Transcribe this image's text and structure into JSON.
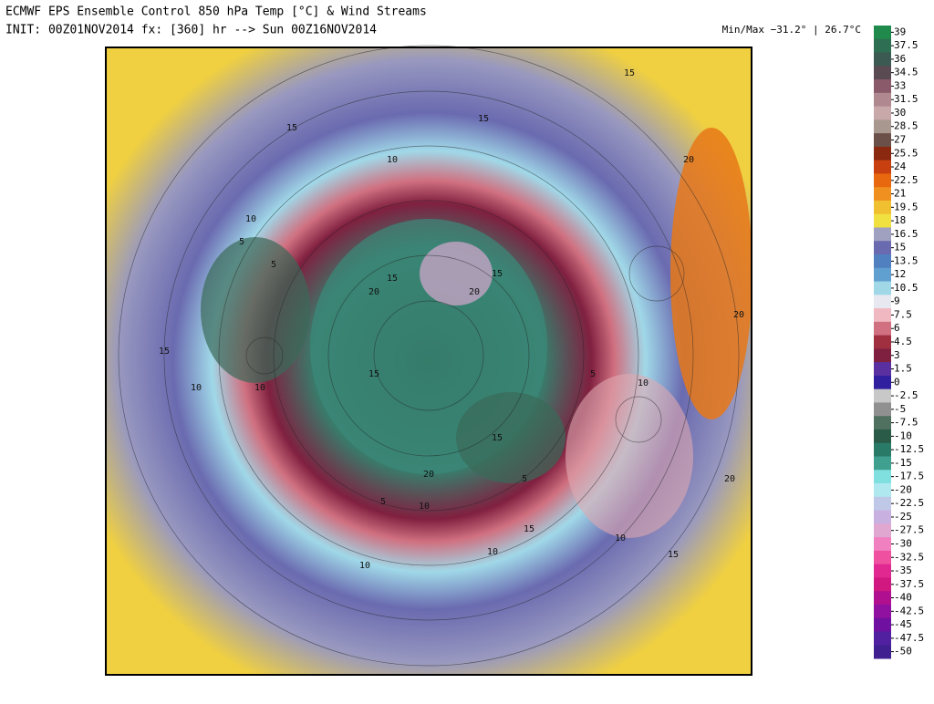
{
  "header": {
    "title": "ECMWF EPS Ensemble Control 850 hPa Temp [°C] & Wind Streams",
    "init": "INIT: 00Z01NOV2014 fx: [360] hr --> Sun 00Z16NOV2014",
    "minmax": "Min/Max −31.2° | 26.7°C"
  },
  "map": {
    "contour_labels": [
      "15",
      "15",
      "10",
      "5",
      "10",
      "15",
      "20",
      "15",
      "20",
      "15",
      "10",
      "5",
      "10",
      "15",
      "20",
      "20",
      "15",
      "5",
      "10",
      "5",
      "10",
      "10",
      "15",
      "20",
      "20",
      "10",
      "15",
      "5",
      "10",
      "15"
    ]
  },
  "colorbar": {
    "ticks": [
      39,
      37.5,
      36,
      34.5,
      33,
      31.5,
      30,
      28.5,
      27,
      25.5,
      24,
      22.5,
      21,
      19.5,
      18,
      16.5,
      15,
      13.5,
      12,
      10.5,
      9,
      7.5,
      6,
      4.5,
      3,
      1.5,
      0,
      -2.5,
      -5,
      -7.5,
      -10,
      -12.5,
      -15,
      -17.5,
      -20,
      -22.5,
      -25,
      -27.5,
      -30,
      -32.5,
      -35,
      -37.5,
      -40,
      -42.5,
      -45,
      -47.5,
      -50
    ],
    "colors": [
      "#1f8a4c",
      "#2e6e52",
      "#3b5a52",
      "#5a4a52",
      "#8a5a6a",
      "#b08890",
      "#c8a8a8",
      "#a89890",
      "#6a5048",
      "#8a2810",
      "#c84010",
      "#e86810",
      "#f09020",
      "#f0c030",
      "#f0e040",
      "#a0a0c0",
      "#6a6ab0",
      "#5080c0",
      "#60a0d0",
      "#a0d8e8",
      "#e8e8f0",
      "#f0b8c0",
      "#d07080",
      "#a03040",
      "#802040",
      "#5a30a0",
      "#3020a0",
      "#c8c8c8",
      "#909090",
      "#507060",
      "#2a5a48",
      "#2a7a68",
      "#40a090",
      "#80e0e0",
      "#b0e8f0",
      "#c0c8e8",
      "#c8b0e0",
      "#e0a8d0",
      "#f080c0",
      "#f050a0",
      "#e02890",
      "#d01880",
      "#b01090",
      "#9010a0",
      "#7010a0",
      "#5020a0",
      "#402090"
    ]
  }
}
